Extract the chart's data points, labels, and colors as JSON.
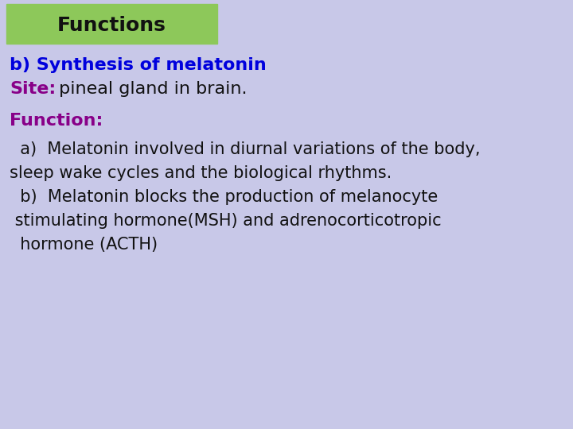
{
  "background_color": "#c8c8e8",
  "title_box_color": "#8dc85a",
  "title_text": "Functions",
  "title_text_color": "#111111",
  "title_font_size": 18,
  "line1_bold": "b) Synthesis of melatonin",
  "line1_color": "#0000dd",
  "line1_fontsize": 16,
  "line2_bold": "Site:",
  "line2_normal": " pineal gland in brain.",
  "line2_bold_color": "#880088",
  "line2_normal_color": "#111111",
  "line2_fontsize": 16,
  "line3_bold": "Function:",
  "line3_color": "#880088",
  "line3_fontsize": 16,
  "body_color": "#111111",
  "body_fontsize": 15,
  "body_lines": [
    "  a)  Melatonin involved in diurnal variations of the body,",
    "sleep wake cycles and the biological rhythms.",
    "  b)  Melatonin blocks the production of melanocyte",
    " stimulating hormone(MSH) and adrenocorticotropic",
    "  hormone (ACTH)"
  ],
  "fig_width": 7.2,
  "fig_height": 5.4,
  "dpi": 100
}
